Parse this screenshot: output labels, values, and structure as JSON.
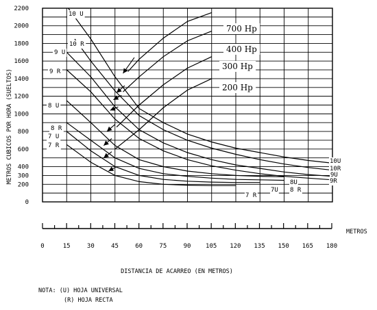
{
  "chart_data": {
    "type": "line",
    "ylabel": "METROS CUBICOS POR HORA (SUELTOS)",
    "xlabel": "DISTANCIA DE ACARREO (EN METROS)",
    "x_units_label": "METROS",
    "y_ticks": [
      0,
      200,
      300,
      400,
      600,
      800,
      1000,
      1200,
      1400,
      1600,
      1800,
      2000,
      2200
    ],
    "x_ticks": [
      0,
      15,
      30,
      45,
      60,
      75,
      90,
      105,
      120,
      135,
      150,
      165,
      180
    ],
    "xlim": [
      0,
      180
    ],
    "ylim": [
      0,
      2200
    ],
    "grid": true,
    "production_series": [
      {
        "name": "10 U",
        "end_label": "10U",
        "x": [
          16,
          30,
          45,
          60,
          75,
          90,
          105,
          120,
          135,
          150,
          165,
          180
        ],
        "y": [
          2200,
          1850,
          1420,
          1060,
          900,
          770,
          680,
          610,
          560,
          510,
          470,
          440
        ]
      },
      {
        "name": "10 R",
        "end_label": "10R",
        "x": [
          20,
          30,
          45,
          60,
          75,
          90,
          105,
          120,
          135,
          150,
          165,
          180
        ],
        "y": [
          1850,
          1600,
          1260,
          980,
          820,
          700,
          610,
          540,
          480,
          430,
          390,
          360
        ]
      },
      {
        "name": "9 U",
        "end_label": "9U",
        "x": [
          15,
          30,
          45,
          60,
          75,
          90,
          105,
          120,
          135,
          150,
          165,
          180
        ],
        "y": [
          1700,
          1420,
          1080,
          820,
          670,
          560,
          480,
          420,
          380,
          340,
          310,
          290
        ]
      },
      {
        "name": "9 R",
        "end_label": "9R",
        "x": [
          15,
          30,
          45,
          60,
          75,
          90,
          105,
          120,
          135,
          150,
          165,
          180
        ],
        "y": [
          1500,
          1250,
          940,
          720,
          580,
          480,
          410,
          360,
          320,
          290,
          270,
          250
        ]
      },
      {
        "name": "8 U",
        "end_label": "8U",
        "x": [
          15,
          30,
          45,
          60,
          75,
          90,
          105,
          120,
          135,
          150
        ],
        "y": [
          1150,
          900,
          640,
          480,
          400,
          350,
          320,
          300,
          290,
          285
        ]
      },
      {
        "name": "8 R",
        "end_label": "8 R",
        "x": [
          15,
          30,
          45,
          60,
          75,
          90,
          105,
          120,
          135,
          150
        ],
        "y": [
          900,
          700,
          500,
          380,
          320,
          290,
          270,
          255,
          250,
          245
        ]
      },
      {
        "name": "7 U",
        "end_label": "7U",
        "x": [
          15,
          30,
          45,
          60,
          75,
          90,
          105,
          120,
          135
        ],
        "y": [
          800,
          580,
          400,
          300,
          255,
          235,
          225,
          220,
          220
        ]
      },
      {
        "name": "7 R",
        "end_label": "7 R",
        "x": [
          15,
          30,
          45,
          60,
          75,
          90,
          105,
          120
        ],
        "y": [
          650,
          450,
          300,
          230,
          200,
          190,
          185,
          185
        ]
      }
    ],
    "hp_series": [
      {
        "name": "700 Hp",
        "x": [
          53,
          60,
          75,
          90,
          105
        ],
        "y": [
          1480,
          1620,
          1860,
          2050,
          2150
        ]
      },
      {
        "name": "400 Hp",
        "x": [
          50,
          60,
          75,
          90,
          105
        ],
        "y": [
          1250,
          1420,
          1650,
          1830,
          1940
        ]
      },
      {
        "name": "300 Hp",
        "x": [
          46,
          60,
          75,
          90,
          105
        ],
        "y": [
          850,
          1100,
          1330,
          1520,
          1650
        ]
      },
      {
        "name": "200 Hp",
        "x": [
          45,
          60,
          75,
          90,
          105
        ],
        "y": [
          600,
          820,
          1070,
          1270,
          1400
        ]
      }
    ],
    "arrows": [
      {
        "from": [
          50,
          1460
        ],
        "to": [
          57,
          1640
        ]
      },
      {
        "from": [
          46,
          1240
        ],
        "to": [
          51,
          1320
        ]
      },
      {
        "from": [
          44,
          1160
        ],
        "to": [
          49,
          1210
        ]
      },
      {
        "from": [
          42,
          1040
        ],
        "to": [
          47,
          1080
        ]
      },
      {
        "from": [
          40,
          800
        ],
        "to": [
          45,
          880
        ]
      },
      {
        "from": [
          38,
          640
        ],
        "to": [
          43,
          720
        ]
      },
      {
        "from": [
          38,
          500
        ],
        "to": [
          43,
          570
        ]
      },
      {
        "from": [
          41,
          350
        ],
        "to": [
          46,
          400
        ]
      }
    ]
  },
  "note": {
    "line1": "NOTA: (U) HOJA UNIVERSAL",
    "line2": "(R) HOJA RECTA"
  }
}
